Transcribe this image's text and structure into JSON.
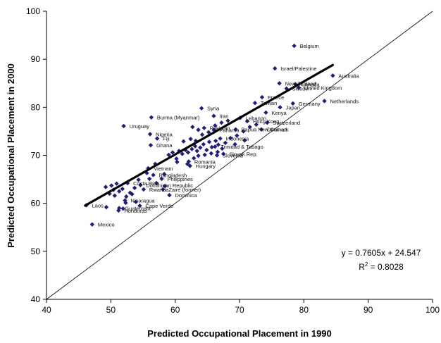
{
  "chart_data": {
    "type": "scatter",
    "xlabel": "Predicted Occupational Placement in 1990",
    "ylabel": "Predicted Occupational Placement in 2000",
    "xlim": [
      40,
      100
    ],
    "ylim": [
      40,
      100
    ],
    "xticks": [
      "40",
      "50",
      "60",
      "70",
      "80",
      "90",
      "100"
    ],
    "yticks": [
      "40",
      "50",
      "60",
      "70",
      "80",
      "90",
      "100"
    ],
    "grid": false,
    "legend": "none",
    "marker_color": "#1f1f7a",
    "points": [
      {
        "label": "Belgium",
        "x": 78.5,
        "y": 92.8
      },
      {
        "label": "Israel/Palestine",
        "x": 75.5,
        "y": 88.1
      },
      {
        "label": "Australia",
        "x": 84.5,
        "y": 86.6
      },
      {
        "label": "New Zealand",
        "x": 76.2,
        "y": 85.0
      },
      {
        "label": "Canada",
        "x": 78.7,
        "y": 84.8
      },
      {
        "label": "United Kingdom",
        "x": 79.2,
        "y": 84.1
      },
      {
        "label": "Sweden",
        "x": 77.3,
        "y": 83.9
      },
      {
        "label": "France",
        "x": 73.5,
        "y": 82.1
      },
      {
        "label": "Netherlands",
        "x": 83.2,
        "y": 81.3
      },
      {
        "label": "Taiwan",
        "x": 72.4,
        "y": 80.9
      },
      {
        "label": "Germany",
        "x": 78.3,
        "y": 80.8
      },
      {
        "label": "Japan",
        "x": 76.3,
        "y": 80.0
      },
      {
        "label": "Syria",
        "x": 64.1,
        "y": 79.8
      },
      {
        "label": "Kenya",
        "x": 74.1,
        "y": 78.9
      },
      {
        "label": "Burma (Myanmar)",
        "x": 56.3,
        "y": 77.9
      },
      {
        "label": "Iran",
        "x": 66.0,
        "y": 78.2
      },
      {
        "label": "Lebanon",
        "x": 70.1,
        "y": 77.8
      },
      {
        "label": "Hong Kong",
        "x": 71.2,
        "y": 77.1
      },
      {
        "label": "Switzerland",
        "x": 74.3,
        "y": 76.8
      },
      {
        "label": "Uruguay",
        "x": 52.0,
        "y": 76.1
      },
      {
        "label": "Pakistan",
        "x": 64.5,
        "y": 75.7
      },
      {
        "label": "Panama",
        "x": 66.0,
        "y": 75.3
      },
      {
        "label": "Papua New Guinea",
        "x": 69.4,
        "y": 75.4
      },
      {
        "label": "Denmark",
        "x": 73.4,
        "y": 75.4
      },
      {
        "label": "Nigeria",
        "x": 56.1,
        "y": 74.4
      },
      {
        "label": "Fiji",
        "x": 57.2,
        "y": 73.5
      },
      {
        "label": "Ghana",
        "x": 56.2,
        "y": 72.1
      },
      {
        "label": "Indonesia",
        "x": 67.0,
        "y": 73.5
      },
      {
        "label": "Trinidad & Tobago",
        "x": 66.2,
        "y": 71.8
      },
      {
        "label": "Slovak Rep.",
        "x": 67.5,
        "y": 70.3
      },
      {
        "label": "Slovenia",
        "x": 66.5,
        "y": 70.0
      },
      {
        "label": "Romania",
        "x": 62.1,
        "y": 68.7
      },
      {
        "label": "Hungary",
        "x": 62.3,
        "y": 67.8
      },
      {
        "label": "Vietnam",
        "x": 55.8,
        "y": 67.3
      },
      {
        "label": "Bangladesh",
        "x": 56.6,
        "y": 65.9
      },
      {
        "label": "Philippines",
        "x": 57.9,
        "y": 65.1
      },
      {
        "label": "Costa Rica",
        "x": 52.6,
        "y": 64.2
      },
      {
        "label": "Dominican Republic",
        "x": 54.6,
        "y": 63.8
      },
      {
        "label": "Rwanda",
        "x": 55.1,
        "y": 62.9
      },
      {
        "label": "Zaire (former)",
        "x": 58.1,
        "y": 62.9
      },
      {
        "label": "Dominica",
        "x": 59.1,
        "y": 61.7
      },
      {
        "label": "Nicaragua",
        "x": 52.2,
        "y": 60.6
      },
      {
        "label": "Laos",
        "x": 46.2,
        "y": 59.6
      },
      {
        "label": "Cape Verde",
        "x": 54.5,
        "y": 59.5
      },
      {
        "label": "Guatemala",
        "x": 51.3,
        "y": 59.0
      },
      {
        "label": "Honduras",
        "x": 51.2,
        "y": 58.5
      },
      {
        "label": "Mexico",
        "x": 47.1,
        "y": 55.6
      }
    ],
    "unlabeled_points": [
      {
        "x": 49.2,
        "y": 63.4
      },
      {
        "x": 50.1,
        "y": 63.7
      },
      {
        "x": 50.4,
        "y": 62.8
      },
      {
        "x": 50.9,
        "y": 64.1
      },
      {
        "x": 51.3,
        "y": 62.5
      },
      {
        "x": 49.8,
        "y": 62.0
      },
      {
        "x": 50.6,
        "y": 61.6
      },
      {
        "x": 51.8,
        "y": 63.0
      },
      {
        "x": 53.0,
        "y": 62.2
      },
      {
        "x": 53.7,
        "y": 63.2
      },
      {
        "x": 49.3,
        "y": 59.2
      },
      {
        "x": 52.4,
        "y": 61.4
      },
      {
        "x": 53.3,
        "y": 61.9
      },
      {
        "x": 55.6,
        "y": 66.3
      },
      {
        "x": 56.0,
        "y": 65.1
      },
      {
        "x": 57.1,
        "y": 64.2
      },
      {
        "x": 58.4,
        "y": 63.6
      },
      {
        "x": 54.3,
        "y": 64.9
      },
      {
        "x": 56.9,
        "y": 68.2
      },
      {
        "x": 59.0,
        "y": 70.1
      },
      {
        "x": 59.6,
        "y": 70.6
      },
      {
        "x": 60.2,
        "y": 69.3
      },
      {
        "x": 60.6,
        "y": 70.9
      },
      {
        "x": 61.1,
        "y": 70.3
      },
      {
        "x": 61.6,
        "y": 71.1
      },
      {
        "x": 62.0,
        "y": 70.6
      },
      {
        "x": 62.6,
        "y": 71.3
      },
      {
        "x": 63.1,
        "y": 71.9
      },
      {
        "x": 63.4,
        "y": 70.9
      },
      {
        "x": 63.9,
        "y": 71.6
      },
      {
        "x": 64.4,
        "y": 72.3
      },
      {
        "x": 64.9,
        "y": 71.1
      },
      {
        "x": 65.3,
        "y": 72.8
      },
      {
        "x": 65.7,
        "y": 71.7
      },
      {
        "x": 66.3,
        "y": 73.0
      },
      {
        "x": 66.7,
        "y": 72.2
      },
      {
        "x": 67.3,
        "y": 71.4
      },
      {
        "x": 67.8,
        "y": 72.6
      },
      {
        "x": 61.3,
        "y": 72.9
      },
      {
        "x": 62.4,
        "y": 73.4
      },
      {
        "x": 63.2,
        "y": 73.0
      },
      {
        "x": 64.2,
        "y": 74.3
      },
      {
        "x": 65.2,
        "y": 74.8
      },
      {
        "x": 66.2,
        "y": 76.2
      },
      {
        "x": 67.2,
        "y": 76.8
      },
      {
        "x": 68.2,
        "y": 77.2
      },
      {
        "x": 62.7,
        "y": 75.9
      },
      {
        "x": 63.6,
        "y": 75.3
      },
      {
        "x": 64.6,
        "y": 70.1
      },
      {
        "x": 65.6,
        "y": 70.4
      },
      {
        "x": 66.6,
        "y": 70.7
      },
      {
        "x": 68.6,
        "y": 73.6
      },
      {
        "x": 69.6,
        "y": 74.1
      },
      {
        "x": 70.6,
        "y": 75.0
      },
      {
        "x": 60.3,
        "y": 68.6
      },
      {
        "x": 61.9,
        "y": 68.2
      },
      {
        "x": 62.9,
        "y": 69.4
      },
      {
        "x": 63.6,
        "y": 69.9
      },
      {
        "x": 58.3,
        "y": 66.1
      },
      {
        "x": 52.3,
        "y": 60.1
      },
      {
        "x": 51.9,
        "y": 58.9
      },
      {
        "x": 53.9,
        "y": 60.3
      },
      {
        "x": 70.8,
        "y": 73.1
      },
      {
        "x": 71.6,
        "y": 75.9
      },
      {
        "x": 72.6,
        "y": 76.4
      },
      {
        "x": 69.3,
        "y": 72.3
      }
    ],
    "trendline": {
      "slope": 0.7605,
      "intercept": 24.547,
      "x_range": [
        46,
        84.5
      ]
    },
    "reference_line": {
      "from": [
        40,
        40
      ],
      "to": [
        100,
        100
      ]
    },
    "annotations": {
      "equation": "y = 0.7605x + 24.547",
      "r2_prefix": "R",
      "r2_sup": "2",
      "r2_value": " = 0.8028"
    }
  }
}
